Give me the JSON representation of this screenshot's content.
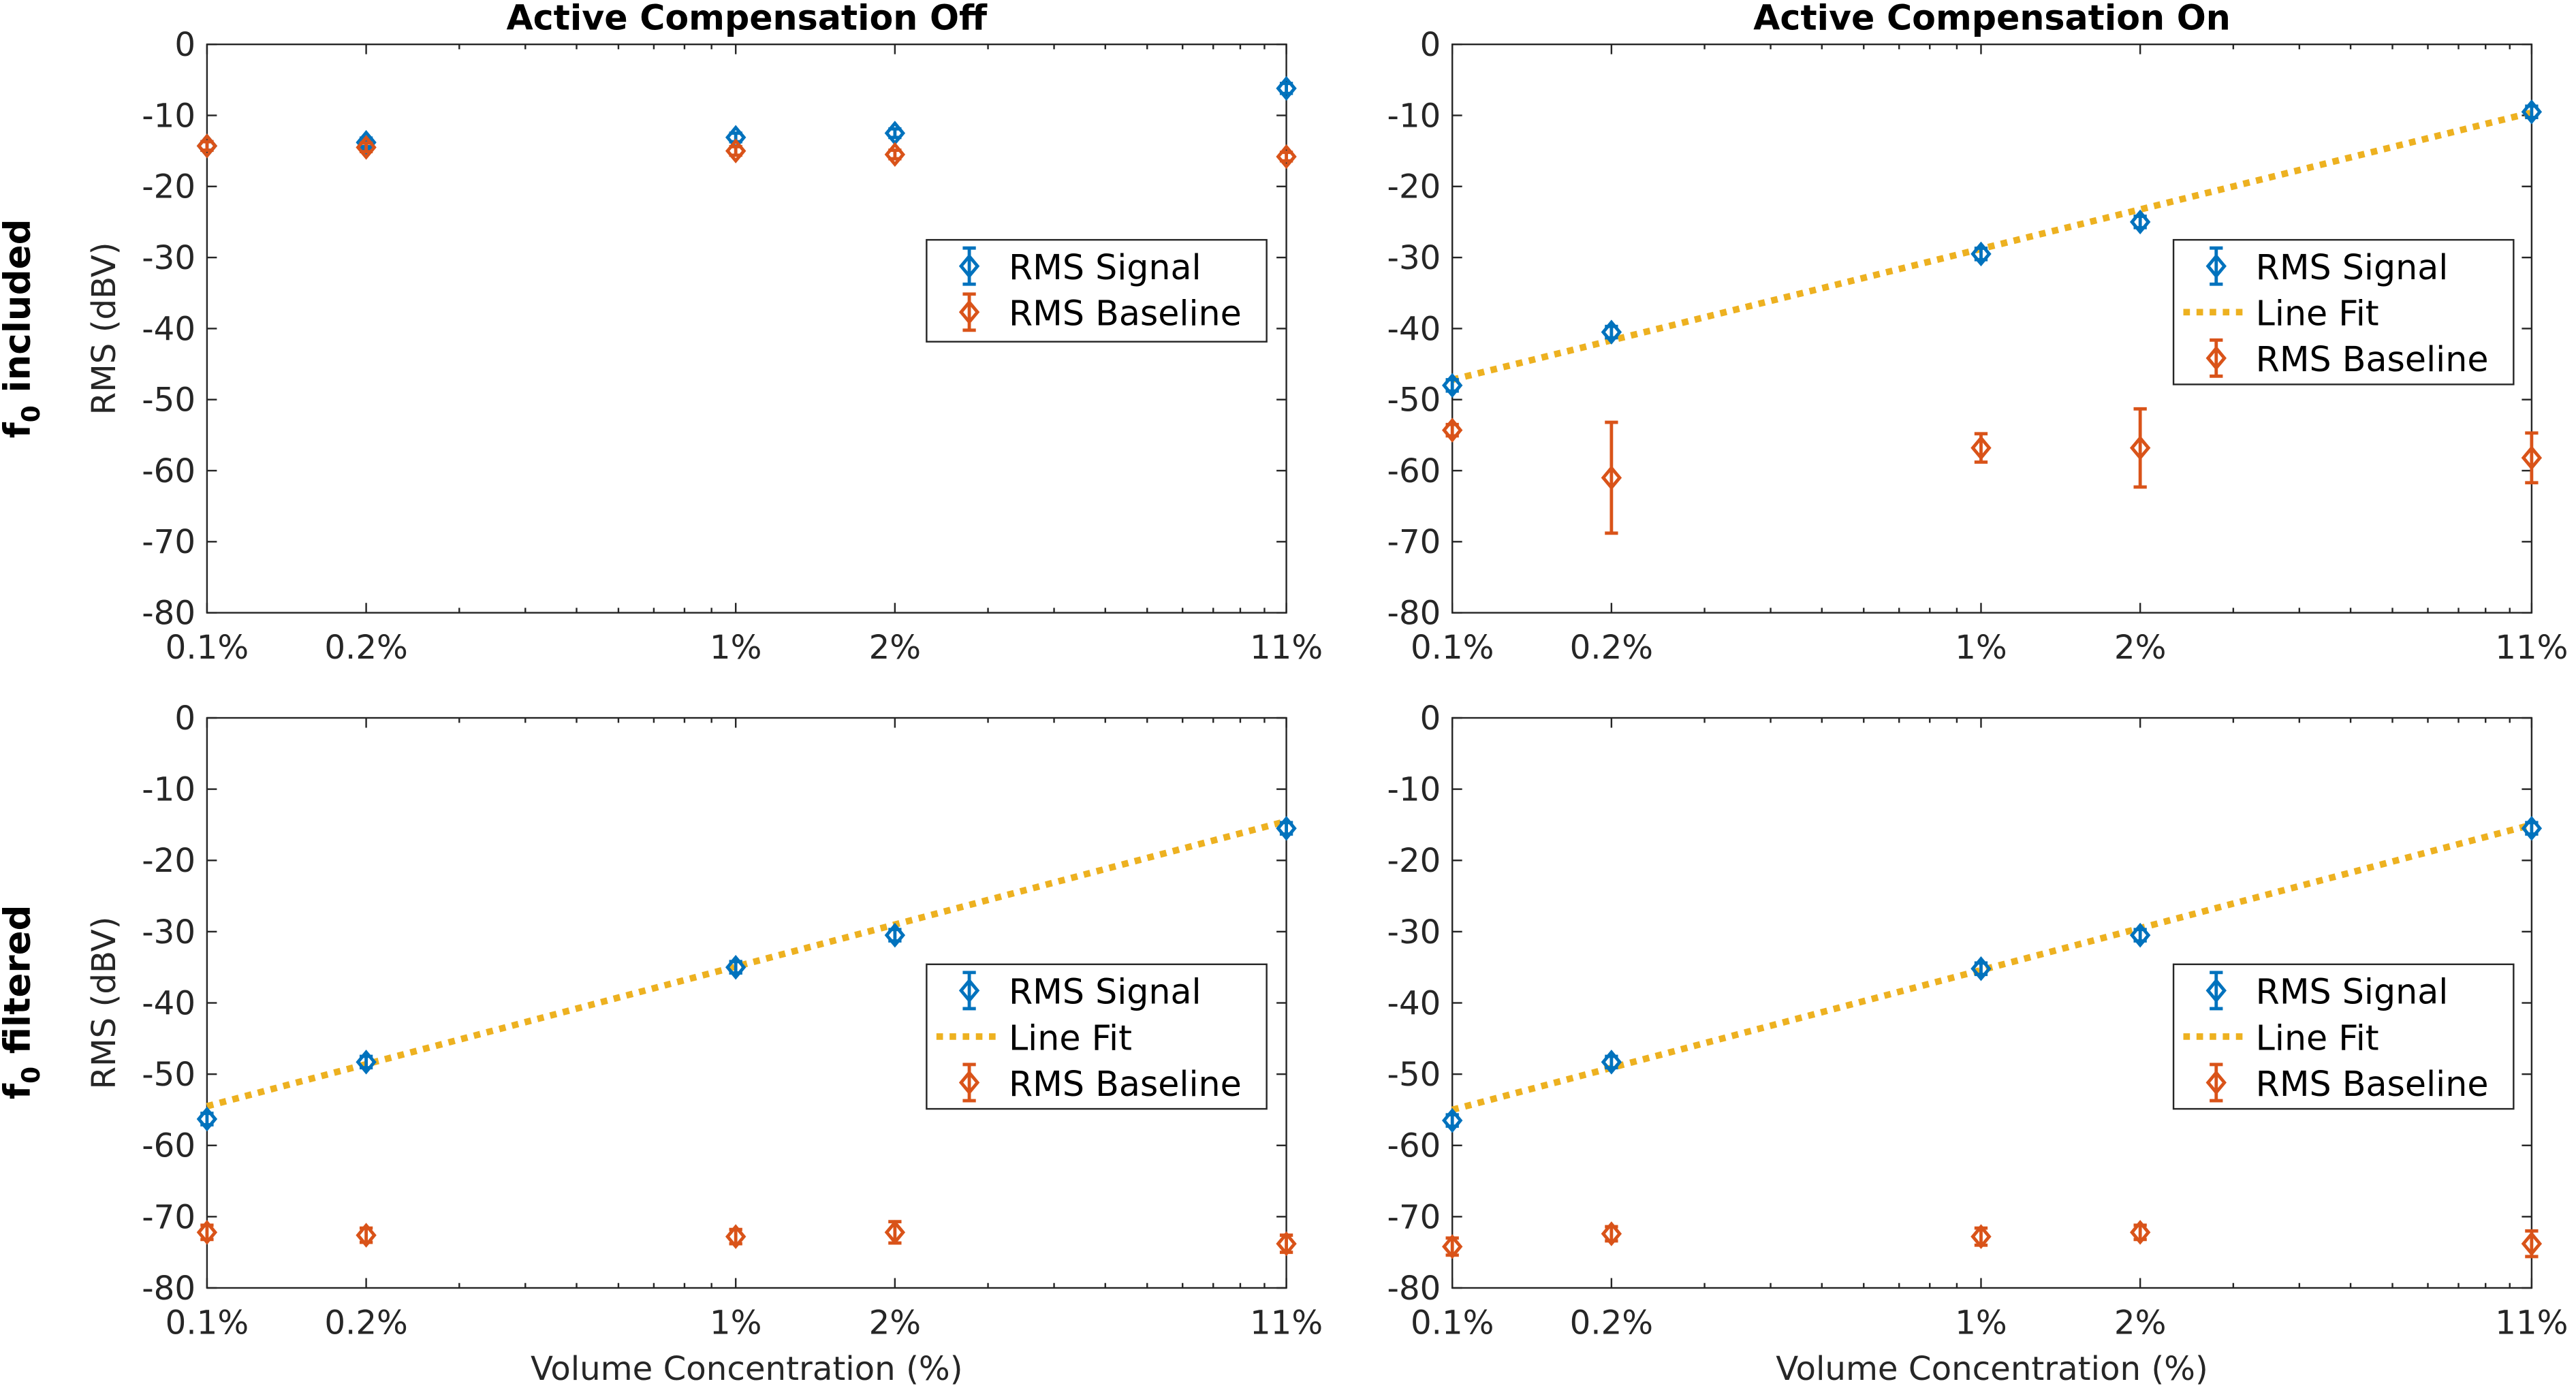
{
  "figure": {
    "column_titles": [
      "Active Compensation Off",
      "Active Compensation On"
    ],
    "row_labels": [
      {
        "base": "f",
        "sub": "0",
        "rest": " included"
      },
      {
        "base": "f",
        "sub": "0",
        "rest": " filtered"
      }
    ],
    "colors": {
      "signal": "#0072BD",
      "baseline": "#D95319",
      "fit": "#EDB120",
      "axis": "#262626",
      "grid": "#262626"
    }
  },
  "chart_data": [
    {
      "type": "scatter",
      "title": "Active Compensation Off",
      "row_label": "f0 included",
      "xlabel": "",
      "ylabel": "RMS (dBV)",
      "xscale": "log",
      "xlim": [
        0.1,
        11
      ],
      "ylim": [
        -80,
        0
      ],
      "xticks": [
        0.1,
        0.2,
        1,
        2,
        11
      ],
      "xtick_labels": [
        "0.1%",
        "0.2%",
        "1%",
        "2%",
        "11%"
      ],
      "yticks": [
        0,
        -10,
        -20,
        -30,
        -40,
        -50,
        -60,
        -70,
        -80
      ],
      "ytick_labels": [
        "0",
        "-10",
        "-20",
        "-30",
        "-40",
        "-50",
        "-60",
        "-70",
        "-80"
      ],
      "legend": {
        "placement": "middle-right",
        "entries": [
          "RMS Signal",
          "RMS Baseline"
        ]
      },
      "series": [
        {
          "name": "RMS Signal",
          "kind": "errorbar",
          "x": [
            0.1,
            0.2,
            1,
            2,
            11
          ],
          "y": [
            -14.3,
            -13.8,
            -13.1,
            -12.5,
            -6.2
          ],
          "err": [
            0.6,
            0.6,
            0.6,
            0.6,
            0.7
          ]
        },
        {
          "name": "RMS Baseline",
          "kind": "errorbar",
          "x": [
            0.1,
            0.2,
            1,
            2,
            11
          ],
          "y": [
            -14.3,
            -14.5,
            -15.0,
            -15.5,
            -15.8
          ],
          "err": [
            0.6,
            0.6,
            0.6,
            0.6,
            0.6
          ]
        }
      ]
    },
    {
      "type": "scatter",
      "title": "Active Compensation On",
      "row_label": "",
      "xlabel": "",
      "ylabel": "",
      "xscale": "log",
      "xlim": [
        0.1,
        11
      ],
      "ylim": [
        -80,
        0
      ],
      "xticks": [
        0.1,
        0.2,
        1,
        2,
        11
      ],
      "xtick_labels": [
        "0.1%",
        "0.2%",
        "1%",
        "2%",
        "11%"
      ],
      "yticks": [
        0,
        -10,
        -20,
        -30,
        -40,
        -50,
        -60,
        -70,
        -80
      ],
      "ytick_labels": [
        "0",
        "-10",
        "-20",
        "-30",
        "-40",
        "-50",
        "-60",
        "-70",
        "-80"
      ],
      "legend": {
        "placement": "upper-right",
        "entries": [
          "RMS Signal",
          "Line Fit",
          "RMS Baseline"
        ]
      },
      "series": [
        {
          "name": "RMS Signal",
          "kind": "errorbar",
          "x": [
            0.1,
            0.2,
            1,
            2,
            11
          ],
          "y": [
            -48.0,
            -40.5,
            -29.5,
            -25.0,
            -9.5
          ],
          "err": [
            0.8,
            0.8,
            0.8,
            0.8,
            0.8
          ]
        },
        {
          "name": "Line Fit",
          "kind": "line",
          "x": [
            0.1,
            11
          ],
          "y": [
            -47.2,
            -9.6
          ]
        },
        {
          "name": "RMS Baseline",
          "kind": "errorbar",
          "x": [
            0.1,
            0.2,
            1,
            2,
            11
          ],
          "y": [
            -54.3,
            -61.0,
            -56.8,
            -56.8,
            -58.2
          ],
          "err": [
            0.8,
            7.8,
            2.0,
            5.5,
            3.5
          ]
        }
      ]
    },
    {
      "type": "scatter",
      "title": "",
      "row_label": "f0 filtered",
      "xlabel": "Volume Concentration (%)",
      "ylabel": "RMS (dBV)",
      "xscale": "log",
      "xlim": [
        0.1,
        11
      ],
      "ylim": [
        -80,
        0
      ],
      "xticks": [
        0.1,
        0.2,
        1,
        2,
        11
      ],
      "xtick_labels": [
        "0.1%",
        "0.2%",
        "1%",
        "2%",
        "11%"
      ],
      "yticks": [
        0,
        -10,
        -20,
        -30,
        -40,
        -50,
        -60,
        -70,
        -80
      ],
      "ytick_labels": [
        "0",
        "-10",
        "-20",
        "-30",
        "-40",
        "-50",
        "-60",
        "-70",
        "-80"
      ],
      "legend": {
        "placement": "middle-right",
        "entries": [
          "RMS Signal",
          "Line Fit",
          "RMS Baseline"
        ]
      },
      "series": [
        {
          "name": "RMS Signal",
          "kind": "errorbar",
          "x": [
            0.1,
            0.2,
            1,
            2,
            11
          ],
          "y": [
            -56.3,
            -48.3,
            -35.0,
            -30.5,
            -15.5
          ],
          "err": [
            0.8,
            0.8,
            0.8,
            0.8,
            0.8
          ]
        },
        {
          "name": "Line Fit",
          "kind": "line",
          "x": [
            0.1,
            11
          ],
          "y": [
            -54.5,
            -14.5
          ]
        },
        {
          "name": "RMS Baseline",
          "kind": "errorbar",
          "x": [
            0.1,
            0.2,
            1,
            2,
            11
          ],
          "y": [
            -72.2,
            -72.6,
            -72.8,
            -72.2,
            -73.8
          ],
          "err": [
            1.0,
            1.0,
            1.0,
            1.5,
            1.2
          ]
        }
      ]
    },
    {
      "type": "scatter",
      "title": "",
      "row_label": "",
      "xlabel": "Volume Concentration (%)",
      "ylabel": "",
      "xscale": "log",
      "xlim": [
        0.1,
        11
      ],
      "ylim": [
        -80,
        0
      ],
      "xticks": [
        0.1,
        0.2,
        1,
        2,
        11
      ],
      "xtick_labels": [
        "0.1%",
        "0.2%",
        "1%",
        "2%",
        "11%"
      ],
      "yticks": [
        0,
        -10,
        -20,
        -30,
        -40,
        -50,
        -60,
        -70,
        -80
      ],
      "ytick_labels": [
        "0",
        "-10",
        "-20",
        "-30",
        "-40",
        "-50",
        "-60",
        "-70",
        "-80"
      ],
      "legend": {
        "placement": "middle-right",
        "entries": [
          "RMS Signal",
          "Line Fit",
          "RMS Baseline"
        ]
      },
      "series": [
        {
          "name": "RMS Signal",
          "kind": "errorbar",
          "x": [
            0.1,
            0.2,
            1,
            2,
            11
          ],
          "y": [
            -56.5,
            -48.3,
            -35.2,
            -30.5,
            -15.5
          ],
          "err": [
            0.8,
            0.8,
            0.8,
            0.8,
            0.8
          ]
        },
        {
          "name": "Line Fit",
          "kind": "line",
          "x": [
            0.1,
            11
          ],
          "y": [
            -55.0,
            -15.0
          ]
        },
        {
          "name": "RMS Baseline",
          "kind": "errorbar",
          "x": [
            0.1,
            0.2,
            1,
            2,
            11
          ],
          "y": [
            -74.2,
            -72.4,
            -72.8,
            -72.2,
            -73.8
          ],
          "err": [
            1.2,
            1.0,
            1.2,
            1.0,
            1.8
          ]
        }
      ]
    }
  ]
}
